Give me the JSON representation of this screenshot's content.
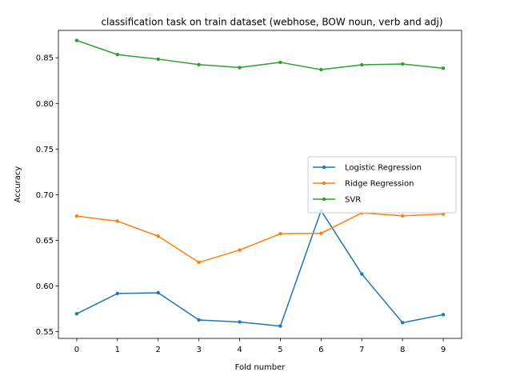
{
  "chart_data": {
    "type": "line",
    "title": "classification task on train dataset (webhose, BOW noun, verb and adj)",
    "xlabel": "Fold number",
    "ylabel": "Accuracy",
    "x": [
      0,
      1,
      2,
      3,
      4,
      5,
      6,
      7,
      8,
      9
    ],
    "xlim": [
      -0.45,
      9.45
    ],
    "ylim": [
      0.5425,
      0.88
    ],
    "yticks": [
      "0.55",
      "0.60",
      "0.65",
      "0.70",
      "0.75",
      "0.80",
      "0.85"
    ],
    "ytick_values": [
      0.55,
      0.6,
      0.65,
      0.7,
      0.75,
      0.8,
      0.85
    ],
    "grid": false,
    "legend_position": "center-right",
    "series": [
      {
        "name": "Logistic Regression",
        "color": "#1f77b4",
        "values": [
          0.5695,
          0.5917,
          0.5925,
          0.5627,
          0.5605,
          0.556,
          0.6825,
          0.613,
          0.5597,
          0.5685
        ]
      },
      {
        "name": "Ridge Regression",
        "color": "#ff7f0e",
        "values": [
          0.6765,
          0.671,
          0.6545,
          0.6258,
          0.6393,
          0.6572,
          0.6577,
          0.68,
          0.6768,
          0.6788
        ]
      },
      {
        "name": "SVR",
        "color": "#2ca02c",
        "values": [
          0.869,
          0.8535,
          0.8485,
          0.8425,
          0.8393,
          0.845,
          0.837,
          0.8423,
          0.8432,
          0.8385
        ]
      }
    ]
  }
}
